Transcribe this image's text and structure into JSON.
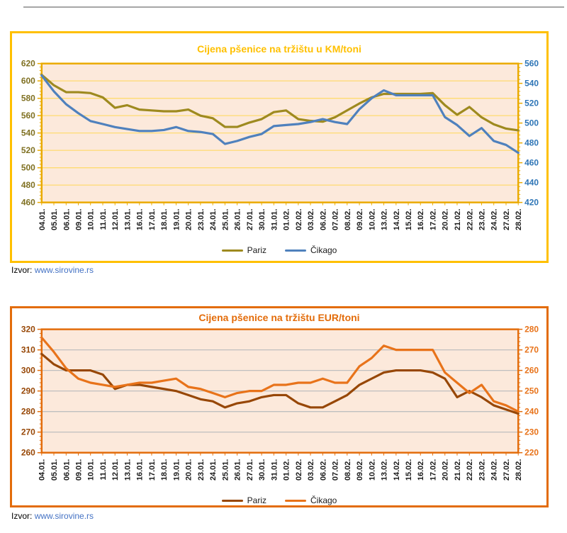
{
  "page": {
    "sources": [
      {
        "label": "Izvor:",
        "link": "www.sirovine.rs"
      },
      {
        "label": "Izvor:",
        "link": "www.sirovine.rs"
      }
    ]
  },
  "chart_data": [
    {
      "type": "line",
      "title": "Cijena pšenice na tržištu u KM/toni",
      "categories": [
        "04.01.",
        "05.01.",
        "06.01.",
        "09.01.",
        "10.01.",
        "11.01.",
        "12.01.",
        "13.01.",
        "16.01.",
        "17.01.",
        "18.01.",
        "19.01.",
        "20.01.",
        "23.01.",
        "24.01.",
        "25.01.",
        "26.01.",
        "27.01.",
        "30.01.",
        "31.01.",
        "01.02.",
        "02.02.",
        "03.02.",
        "06.02.",
        "07.02.",
        "08.02.",
        "09.02.",
        "10.02.",
        "13.02.",
        "14.02.",
        "15.02.",
        "16.02.",
        "17.02.",
        "20.02.",
        "21.02.",
        "22.02.",
        "23.02.",
        "24.02.",
        "27.02.",
        "28.02."
      ],
      "series": [
        {
          "name": "Pariz",
          "axis": "left",
          "color": "#9E8A1F",
          "values": [
            607,
            595,
            587,
            587,
            586,
            581,
            569,
            572,
            567,
            566,
            565,
            565,
            567,
            560,
            557,
            547,
            547,
            552,
            556,
            564,
            566,
            556,
            554,
            553,
            558,
            566,
            574,
            581,
            585,
            585,
            585,
            585,
            586,
            572,
            561,
            570,
            558,
            550,
            545,
            543
          ]
        },
        {
          "name": "Čikago",
          "axis": "right",
          "color": "#4F81BD",
          "values": [
            548,
            532,
            519,
            510,
            502,
            499,
            496,
            494,
            492,
            492,
            493,
            496,
            492,
            491,
            489,
            479,
            482,
            486,
            489,
            497,
            498,
            499,
            501,
            504,
            501,
            499,
            514,
            525,
            533,
            528,
            528,
            528,
            528,
            506,
            498,
            487,
            495,
            482,
            478,
            470
          ]
        }
      ],
      "left_axis": {
        "min": 460,
        "max": 620,
        "minor": 4,
        "color": "#7F7021",
        "ticks": [
          620,
          600,
          580,
          560,
          540,
          520,
          500,
          480,
          460
        ]
      },
      "right_axis": {
        "min": 420,
        "max": 560,
        "minor": 4,
        "color": "#2E75B6",
        "ticks": [
          560,
          540,
          520,
          500,
          480,
          460,
          440,
          420
        ]
      },
      "styles": {
        "frame": "#EAAA00",
        "plot_bg": "#FCE9DB",
        "grid": "#FFDB70",
        "x_label_color": "#1a1a1a"
      },
      "legend_position": "bottom",
      "grid": true
    },
    {
      "type": "line",
      "title": "Cijena pšenice na tržištu EUR/toni",
      "categories": [
        "04.01.",
        "05.01.",
        "06.01.",
        "09.01.",
        "10.01.",
        "11.01.",
        "12.01.",
        "13.01.",
        "16.01.",
        "17.01.",
        "18.01.",
        "19.01.",
        "20.01.",
        "23.01.",
        "24.01.",
        "25.01.",
        "26.01.",
        "27.01.",
        "30.01.",
        "31.01.",
        "01.02.",
        "02.02.",
        "03.02.",
        "06.02.",
        "07.02.",
        "08.02.",
        "09.02.",
        "10.02.",
        "13.02.",
        "14.02.",
        "15.02.",
        "16.02.",
        "17.02.",
        "20.02.",
        "21.02.",
        "22.02.",
        "23.02.",
        "24.02.",
        "27.02.",
        "28.02."
      ],
      "series": [
        {
          "name": "Pariz",
          "axis": "left",
          "color": "#974706",
          "values": [
            308,
            303,
            300,
            300,
            300,
            298,
            291,
            293,
            293,
            292,
            291,
            290,
            288,
            286,
            285,
            282,
            284,
            285,
            287,
            288,
            288,
            284,
            282,
            282,
            285,
            288,
            293,
            296,
            299,
            300,
            300,
            300,
            299,
            296,
            287,
            290,
            287,
            283,
            281,
            279
          ]
        },
        {
          "name": "Čikago",
          "axis": "right",
          "color": "#E8731A",
          "values": [
            276,
            269,
            261,
            256,
            254,
            253,
            252,
            253,
            254,
            254,
            255,
            256,
            252,
            251,
            249,
            247,
            249,
            250,
            250,
            253,
            253,
            254,
            254,
            256,
            254,
            254,
            262,
            266,
            272,
            270,
            270,
            270,
            270,
            259,
            254,
            249,
            253,
            245,
            243,
            240
          ]
        }
      ],
      "left_axis": {
        "min": 260,
        "max": 320,
        "minor": 2,
        "color": "#974706",
        "ticks": [
          320,
          310,
          300,
          290,
          280,
          270,
          260
        ]
      },
      "right_axis": {
        "min": 220,
        "max": 280,
        "minor": 2,
        "color": "#E8731A",
        "ticks": [
          280,
          270,
          260,
          250,
          240,
          230,
          220
        ]
      },
      "styles": {
        "frame": "#E36C0A",
        "plot_bg": "#FCE9DB",
        "grid": "#BFBFBF",
        "x_label_color": "#1a1a1a"
      },
      "legend_position": "bottom",
      "grid": true
    }
  ]
}
